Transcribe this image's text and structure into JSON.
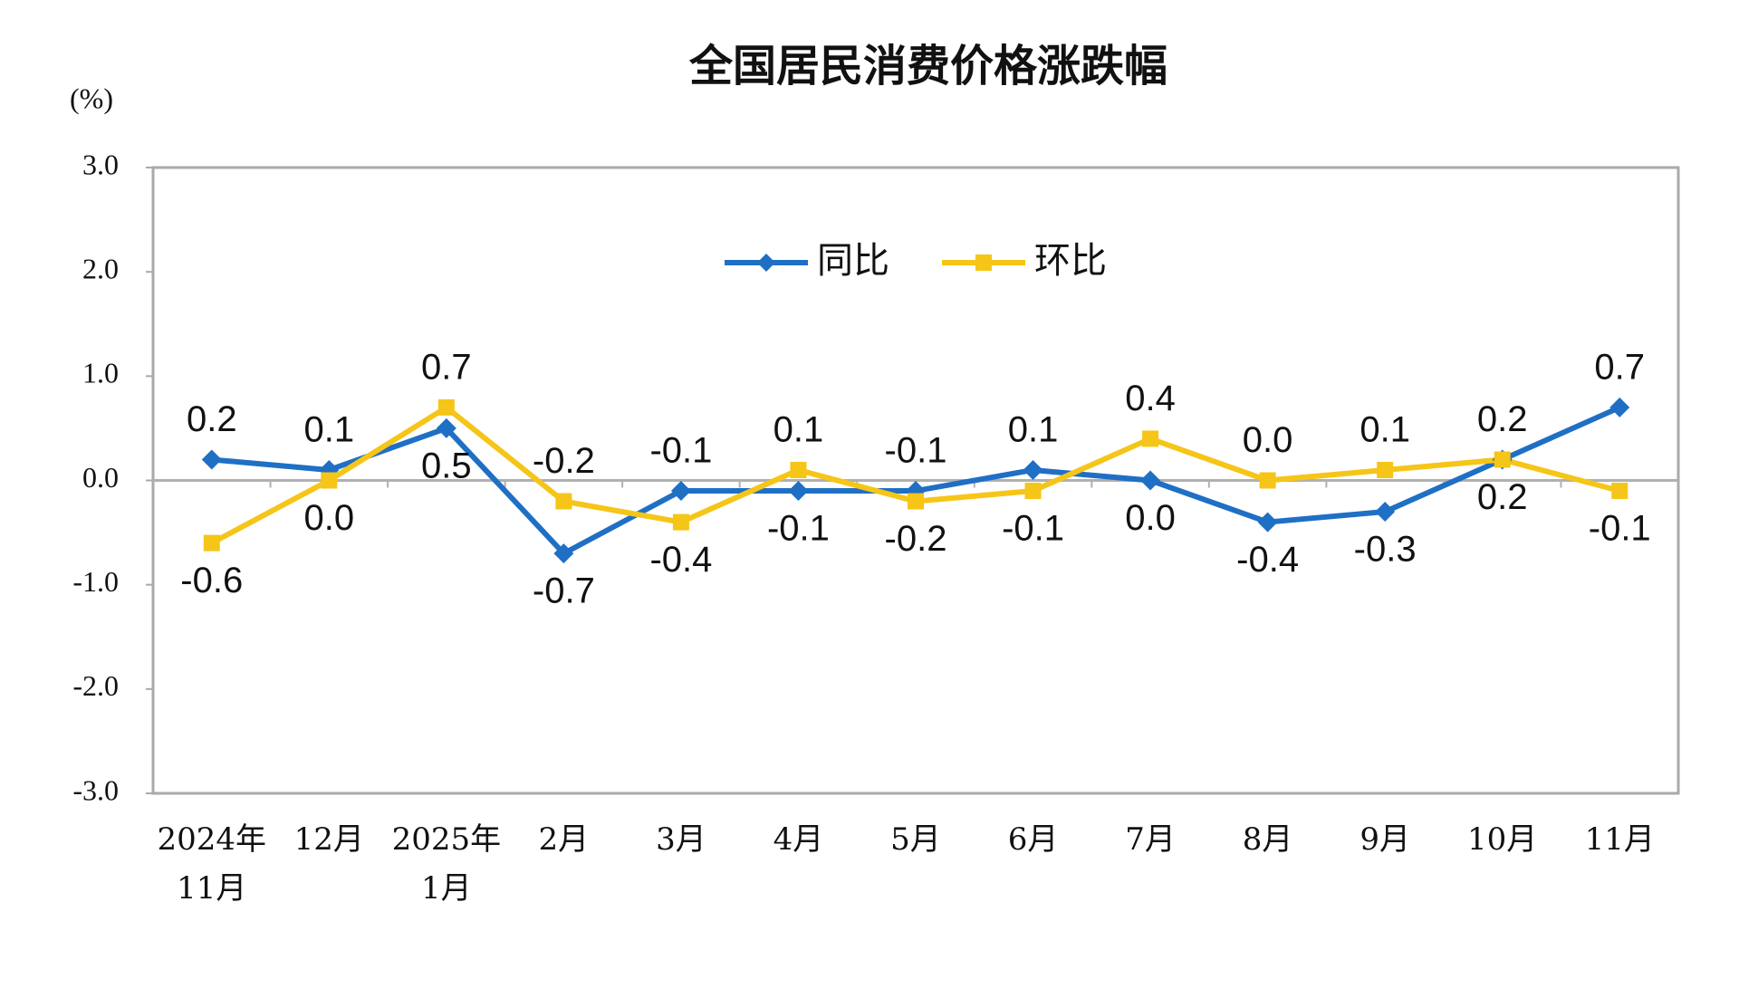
{
  "chart_data": {
    "type": "line",
    "title": "全国居民消费价格涨跌幅",
    "y_unit": "(%)",
    "categories": [
      "2024年\n11月",
      "12月",
      "2025年\n1月",
      "2月",
      "3月",
      "4月",
      "5月",
      "6月",
      "7月",
      "8月",
      "9月",
      "10月",
      "11月"
    ],
    "series": [
      {
        "name": "同比",
        "color": "#1f6fc5",
        "marker": "diamond",
        "values": [
          0.2,
          0.1,
          0.5,
          -0.7,
          -0.1,
          -0.1,
          -0.1,
          0.1,
          0,
          -0.4,
          -0.3,
          0.2,
          0.7
        ],
        "value_labels": [
          "0.2",
          "0.1",
          "0.5",
          "-0.7",
          "-0.1",
          "-0.1",
          "-0.1",
          "0.1",
          "0.0",
          "-0.4",
          "-0.3",
          "0.2",
          "0.7"
        ]
      },
      {
        "name": "环比",
        "color": "#f5c518",
        "marker": "square",
        "values": [
          -0.6,
          0,
          0.7,
          -0.2,
          -0.4,
          0.1,
          -0.2,
          -0.1,
          0.4,
          0,
          0.1,
          0.2,
          -0.1
        ],
        "value_labels": [
          "-0.6",
          "0.0",
          "0.7",
          "-0.2",
          "-0.4",
          "0.1",
          "-0.2",
          "-0.1",
          "0.4",
          "0.0",
          "0.1",
          "0.2",
          "-0.1"
        ]
      }
    ],
    "ylim": [
      -3,
      3
    ],
    "yticks": [
      {
        "value": -3,
        "label": "-3.0"
      },
      {
        "value": -2,
        "label": "-2.0"
      },
      {
        "value": -1,
        "label": "-1.0"
      },
      {
        "value": 0,
        "label": "0.0"
      },
      {
        "value": 1,
        "label": "1.0"
      },
      {
        "value": 2,
        "label": "2.0"
      },
      {
        "value": 3,
        "label": "3.0"
      }
    ],
    "legend": "top"
  }
}
